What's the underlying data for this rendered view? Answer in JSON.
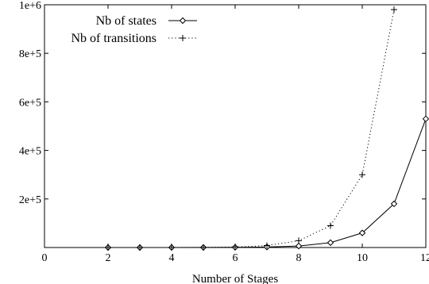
{
  "chart_data": {
    "type": "line",
    "xlabel": "Number of Stages",
    "ylabel": "",
    "xlim": [
      0,
      12
    ],
    "ylim": [
      0,
      1000000
    ],
    "xticks": [
      0,
      2,
      4,
      6,
      8,
      10,
      12
    ],
    "xtick_labels": [
      "0",
      "2",
      "4",
      "6",
      "8",
      "10",
      "12"
    ],
    "yticks": [
      200000,
      400000,
      600000,
      800000,
      1000000
    ],
    "ytick_labels": [
      "2e+5",
      "4e+5",
      "6e+5",
      "8e+5",
      "1e+6"
    ],
    "grid": false,
    "legend_position": "top-left",
    "series": [
      {
        "name": "Nb of states",
        "line_style": "solid",
        "marker": "diamond",
        "color": "#000000",
        "x": [
          2,
          3,
          4,
          5,
          6,
          7,
          8,
          9,
          10,
          11,
          12
        ],
        "y": [
          0,
          0,
          100,
          300,
          800,
          2000,
          6000,
          20000,
          60000,
          180000,
          530000
        ]
      },
      {
        "name": "Nb of transitions",
        "line_style": "dotted",
        "marker": "plus",
        "color": "#000000",
        "x": [
          2,
          3,
          4,
          5,
          6,
          7,
          8,
          9,
          10,
          11
        ],
        "y": [
          0,
          0,
          200,
          600,
          2000,
          8000,
          28000,
          90000,
          300000,
          980000
        ]
      }
    ]
  }
}
